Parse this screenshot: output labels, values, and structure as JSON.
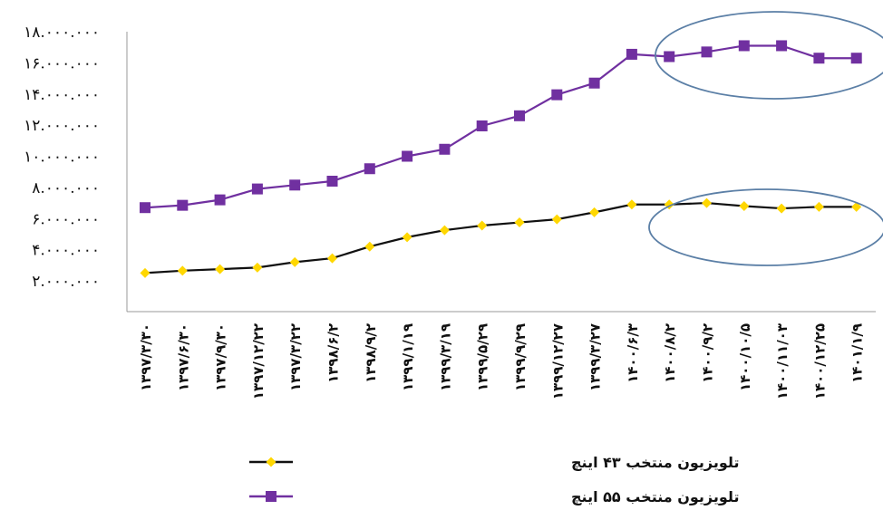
{
  "chart_data": {
    "type": "line",
    "categories": [
      "۱۳۹۷/۳/۳۰",
      "۱۳۹۷/۶/۳۰",
      "۱۳۹۷/۹/۳۰",
      "۱۳۹۷/۱۲/۲۲",
      "۱۳۹۷/۳/۲۲",
      "۱۳۹۸/۶/۲",
      "۱۳۹۸/۹/۲",
      "۱۳۹۹/۱/۱۹",
      "۱۳۹۹/۳/۱۹",
      "۱۳۹۹/۵/۲۹",
      "۱۳۹۹/۹/۲۹",
      "۱۳۹۹/۱۲/۲۷",
      "۱۳۹۹/۳/۲۷",
      "۱۴۰۰/۶/۳",
      "۱۴۰۰/۸/۲",
      "۱۴۰۰/۹/۲",
      "۱۴۰۰/۱۰/۵",
      "۱۴۰۰/۱۱/۰۳",
      "۱۴۰۰/۱۲/۲۵",
      "۱۴۰۱/۱/۹"
    ],
    "series": [
      {
        "name": "تلویزیون منتخب ۵۵ اینچ",
        "color": "#7030A0",
        "marker": "square",
        "values": [
          6700000,
          6850000,
          7200000,
          7900000,
          8150000,
          8400000,
          9200000,
          10000000,
          10450000,
          11950000,
          12600000,
          13950000,
          14700000,
          16550000,
          16400000,
          16700000,
          17100000,
          17100000,
          16300000,
          16300000
        ]
      },
      {
        "name": "تلویزیون منتخب ۴۳ اینچ",
        "color": "#FFD700",
        "marker": "diamond",
        "values": [
          2500000,
          2650000,
          2750000,
          2850000,
          3200000,
          3450000,
          4200000,
          4800000,
          5250000,
          5550000,
          5750000,
          5950000,
          6400000,
          6900000,
          6900000,
          7000000,
          6800000,
          6650000,
          6750000,
          6750000
        ]
      }
    ],
    "y_ticks": [
      "۲.۰۰۰.۰۰۰",
      "۴.۰۰۰.۰۰۰",
      "۶.۰۰۰.۰۰۰",
      "۸.۰۰۰.۰۰۰",
      "۱۰.۰۰۰.۰۰۰",
      "۱۲.۰۰۰.۰۰۰",
      "۱۴.۰۰۰.۰۰۰",
      "۱۶.۰۰۰.۰۰۰",
      "۱۸.۰۰۰.۰۰۰"
    ],
    "y_tick_values": [
      2000000,
      4000000,
      6000000,
      8000000,
      10000000,
      12000000,
      14000000,
      16000000,
      18000000
    ],
    "ylim": [
      2000000,
      18000000
    ],
    "grid": false,
    "legend_position": "bottom",
    "annotations": [
      {
        "shape": "ellipse",
        "color": "#5B7FA6",
        "covers_series": "تلویزیون منتخب ۵۵ اینچ",
        "covers_categories": [
          "۱۴۰۰/۸/۲",
          "۱۴۰۱/۱/۹"
        ]
      },
      {
        "shape": "ellipse",
        "color": "#5B7FA6",
        "covers_series": "تلویزیون منتخب ۴۳ اینچ",
        "covers_categories": [
          "۱۴۰۰/۸/۲",
          "۱۴۰۱/۱/۹"
        ]
      }
    ]
  }
}
